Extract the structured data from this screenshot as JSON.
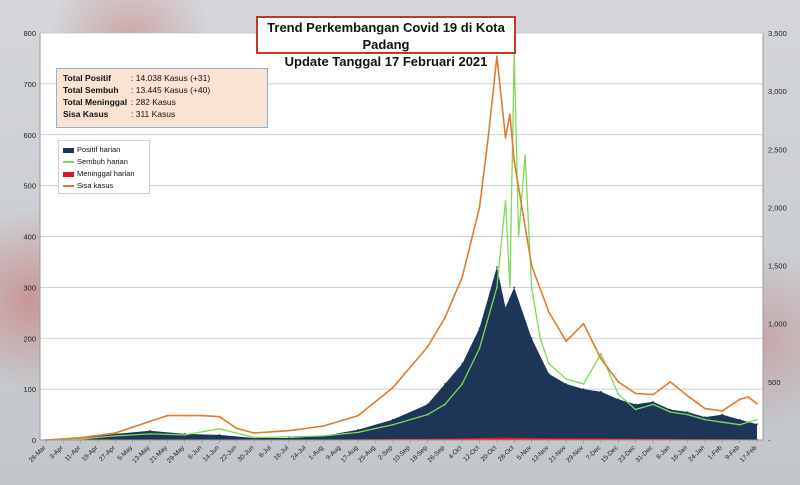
{
  "title": {
    "line1": "Trend Perkembangan Covid 19 di Kota Padang",
    "line2": "Update Tanggal  17 Februari 2021"
  },
  "summary": [
    {
      "label": "Total Positif",
      "value": ": 14.038 Kasus (+31)"
    },
    {
      "label": "Total Sembuh",
      "value": ": 13.445 Kasus (+40)"
    },
    {
      "label": "Total Meninggal",
      "value": ":       282 Kasus"
    },
    {
      "label": "Sisa Kasus",
      "value": ":       311 Kasus"
    }
  ],
  "colors": {
    "positif": "#1d3557",
    "sembuh": "#7ed957",
    "meninggal": "#e0141e",
    "sisa": "#e07b2b",
    "title_border": "#c0392b"
  },
  "chart_data": {
    "type": "area",
    "title": "Trend Perkembangan Covid 19 di Kota Padang",
    "subtitle": "Update Tanggal  17 Februari 2021",
    "y_left": {
      "min": 0,
      "max": 800,
      "ticks": [
        "0",
        "100",
        "200",
        "300",
        "400",
        "500",
        "600",
        "700",
        "800"
      ]
    },
    "y_right": {
      "min": 0,
      "max": 3500,
      "ticks": [
        "-",
        "500",
        "1,000",
        "1,500",
        "2,000",
        "2,500",
        "3,000",
        "3,500"
      ]
    },
    "x_tick_labels": [
      "26-Mar",
      "3-Apr",
      "11-Apr",
      "19-Apr",
      "27-Apr",
      "5-May",
      "13-May",
      "21-May",
      "29-May",
      "6-Jun",
      "14-Jun",
      "22-Jun",
      "30-Jun",
      "8-Jul",
      "16-Jul",
      "24-Jul",
      "1-Aug",
      "9-Aug",
      "17-Aug",
      "25-Aug",
      "2-Sep",
      "10-Sep",
      "18-Sep",
      "26-Sep",
      "4-Oct",
      "12-Oct",
      "20-Oct",
      "28-Oct",
      "5-Nov",
      "13-Nov",
      "21-Nov",
      "29-Nov",
      "7-Dec",
      "15-Dec",
      "23-Dec",
      "31-Dec",
      "8-Jan",
      "16-Jan",
      "24-Jan",
      "1-Feb",
      "9-Feb",
      "17-Feb"
    ],
    "legend_position": "top-left",
    "grid": true,
    "series": [
      {
        "name": "Positif harian",
        "axis": "left",
        "kind": "area",
        "x": [
          "26-Mar",
          "11-Apr",
          "27-Apr",
          "13-May",
          "29-May",
          "14-Jun",
          "30-Jun",
          "16-Jul",
          "1-Aug",
          "17-Aug",
          "2-Sep",
          "18-Sep",
          "26-Sep",
          "4-Oct",
          "12-Oct",
          "20-Oct",
          "24-Oct",
          "28-Oct",
          "5-Nov",
          "13-Nov",
          "21-Nov",
          "29-Nov",
          "7-Dec",
          "15-Dec",
          "23-Dec",
          "31-Dec",
          "8-Jan",
          "16-Jan",
          "24-Jan",
          "1-Feb",
          "9-Feb",
          "17-Feb"
        ],
        "values": [
          0,
          3,
          12,
          18,
          12,
          10,
          4,
          4,
          8,
          20,
          40,
          70,
          110,
          150,
          220,
          340,
          260,
          300,
          200,
          130,
          110,
          100,
          95,
          80,
          70,
          75,
          60,
          55,
          45,
          50,
          40,
          31
        ]
      },
      {
        "name": "Sembuh harian",
        "axis": "left",
        "kind": "line",
        "x": [
          "26-Mar",
          "11-Apr",
          "27-Apr",
          "13-May",
          "29-May",
          "14-Jun",
          "30-Jun",
          "16-Jul",
          "1-Aug",
          "17-Aug",
          "2-Sep",
          "18-Sep",
          "26-Sep",
          "4-Oct",
          "12-Oct",
          "20-Oct",
          "24-Oct",
          "26-Oct",
          "28-Oct",
          "30-Oct",
          "2-Nov",
          "5-Nov",
          "9-Nov",
          "13-Nov",
          "21-Nov",
          "29-Nov",
          "7-Dec",
          "15-Dec",
          "23-Dec",
          "31-Dec",
          "8-Jan",
          "16-Jan",
          "24-Jan",
          "1-Feb",
          "9-Feb",
          "17-Feb"
        ],
        "values": [
          0,
          2,
          8,
          12,
          10,
          22,
          5,
          6,
          8,
          15,
          30,
          50,
          70,
          110,
          180,
          300,
          470,
          300,
          760,
          400,
          560,
          300,
          200,
          150,
          120,
          110,
          170,
          90,
          60,
          70,
          55,
          50,
          40,
          35,
          30,
          40
        ]
      },
      {
        "name": "Meninggal harian",
        "axis": "left",
        "kind": "area",
        "x": [
          "26-Mar",
          "1-Aug",
          "2-Sep",
          "4-Oct",
          "20-Oct",
          "5-Nov",
          "7-Dec",
          "8-Jan",
          "17-Feb"
        ],
        "values": [
          0,
          1,
          2,
          3,
          5,
          4,
          3,
          2,
          1
        ]
      },
      {
        "name": "Sisa kasus",
        "axis": "right",
        "kind": "line",
        "x": [
          "26-Mar",
          "11-Apr",
          "27-Apr",
          "13-May",
          "21-May",
          "29-May",
          "6-Jun",
          "14-Jun",
          "22-Jun",
          "30-Jun",
          "16-Jul",
          "1-Aug",
          "17-Aug",
          "2-Sep",
          "18-Sep",
          "26-Sep",
          "4-Oct",
          "12-Oct",
          "16-Oct",
          "20-Oct",
          "24-Oct",
          "26-Oct",
          "28-Oct",
          "5-Nov",
          "13-Nov",
          "21-Nov",
          "29-Nov",
          "7-Dec",
          "15-Dec",
          "23-Dec",
          "31-Dec",
          "8-Jan",
          "16-Jan",
          "24-Jan",
          "1-Feb",
          "9-Feb",
          "13-Feb",
          "17-Feb"
        ],
        "values": [
          0,
          20,
          60,
          160,
          210,
          210,
          210,
          200,
          100,
          60,
          80,
          120,
          210,
          450,
          800,
          1050,
          1400,
          2000,
          2600,
          3300,
          2600,
          2800,
          2400,
          1500,
          1100,
          850,
          1000,
          700,
          500,
          400,
          390,
          500,
          380,
          270,
          250,
          350,
          370,
          311
        ]
      }
    ]
  }
}
